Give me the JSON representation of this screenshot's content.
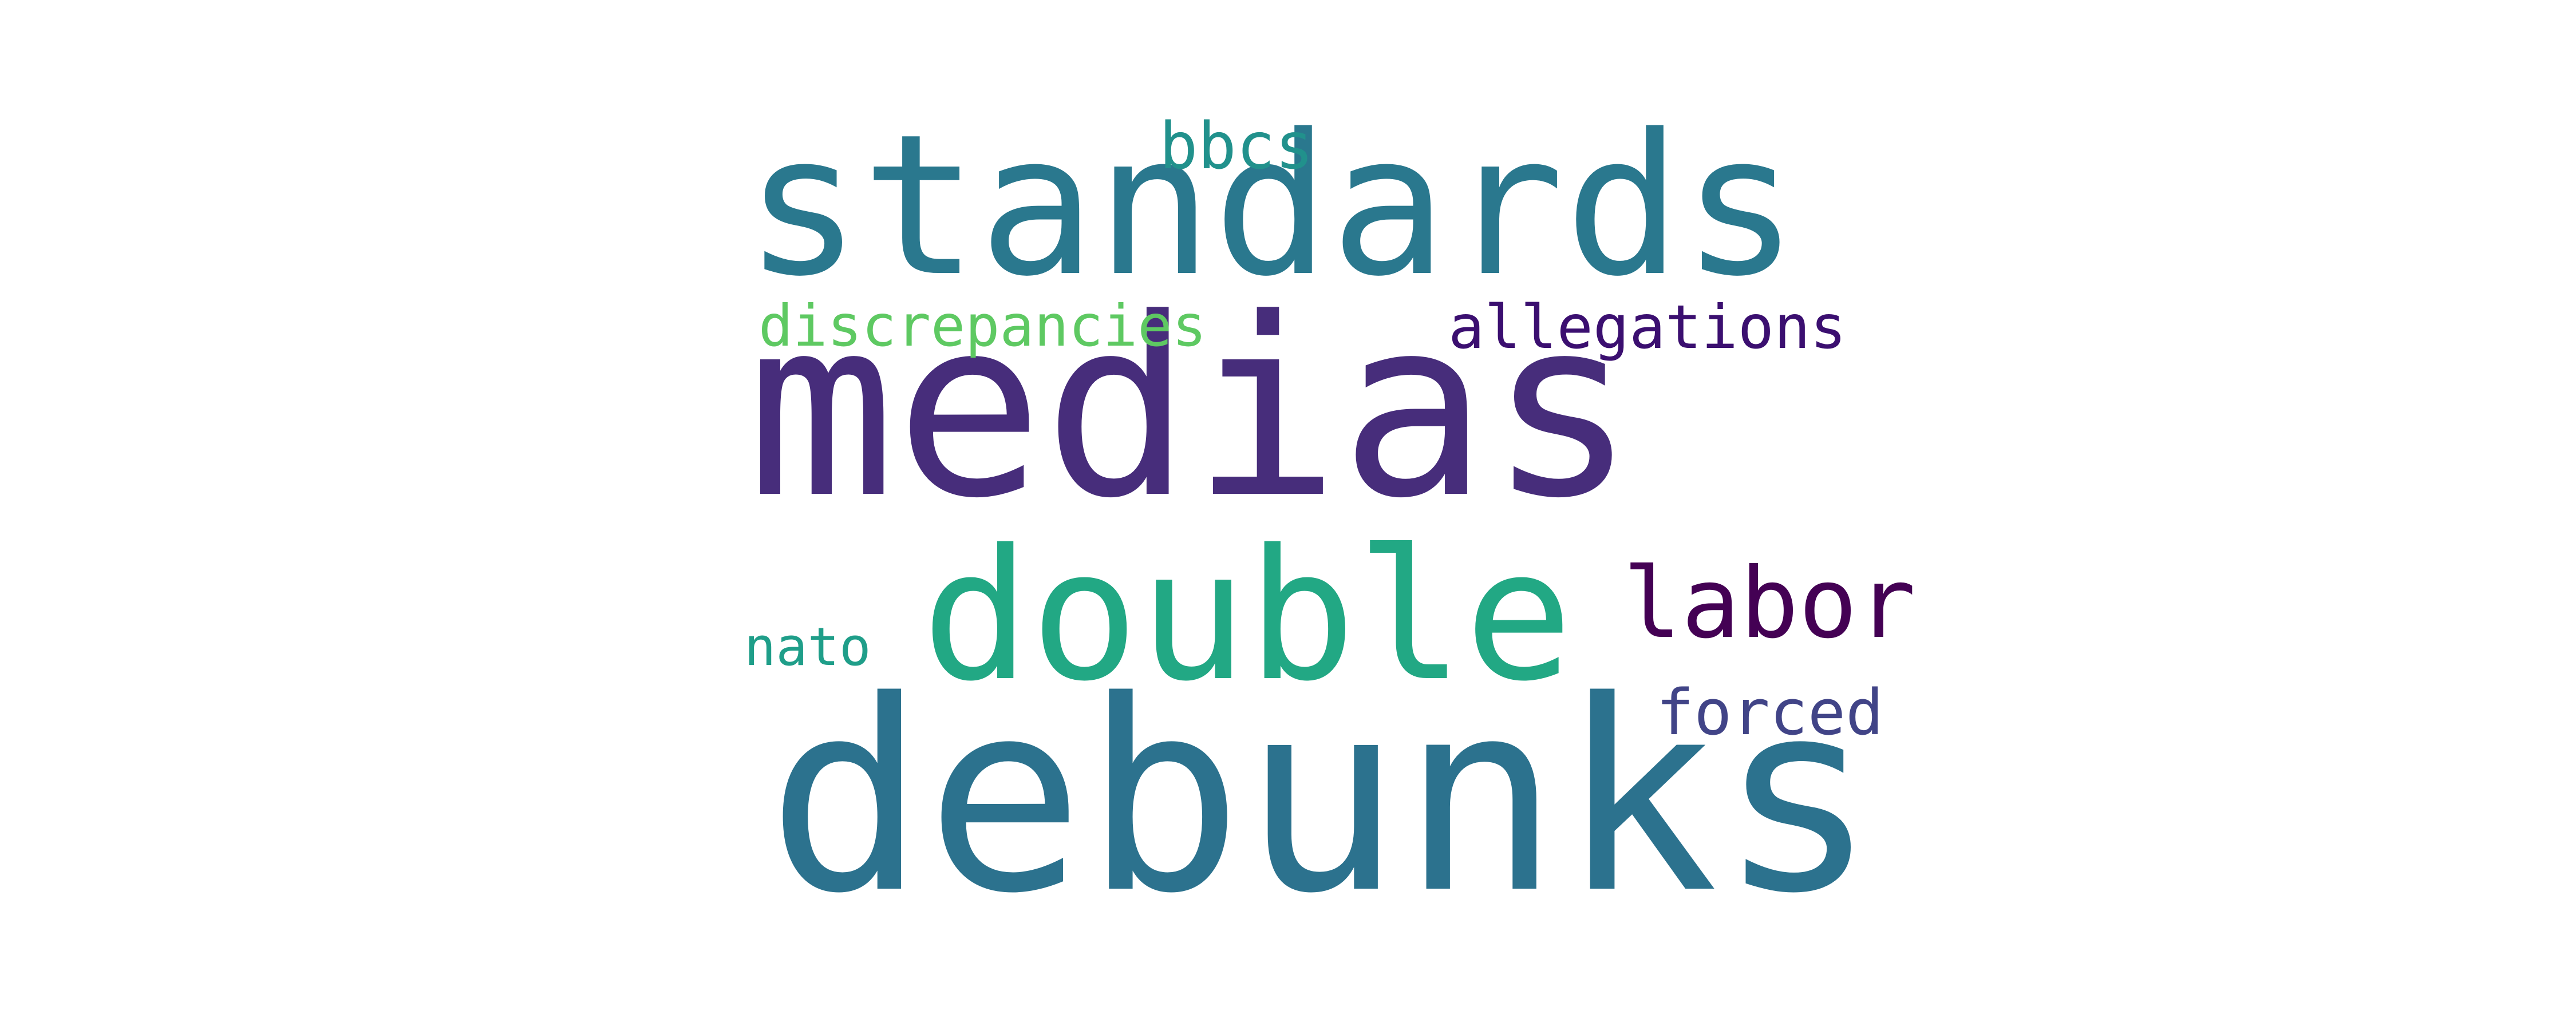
{
  "word_cloud": {
    "words": [
      {
        "text": "medias",
        "color": "#472d7b"
      },
      {
        "text": "standards",
        "color": "#2a788e"
      },
      {
        "text": "debunks",
        "color": "#2c728e"
      },
      {
        "text": "double",
        "color": "#22a884"
      },
      {
        "text": "labor",
        "color": "#440154"
      },
      {
        "text": "bbcs",
        "color": "#21918c"
      },
      {
        "text": "discrepancies",
        "color": "#5ec962"
      },
      {
        "text": "allegations",
        "color": "#3b0f70"
      },
      {
        "text": "nato",
        "color": "#1f9e89"
      },
      {
        "text": "forced",
        "color": "#414487"
      }
    ]
  }
}
